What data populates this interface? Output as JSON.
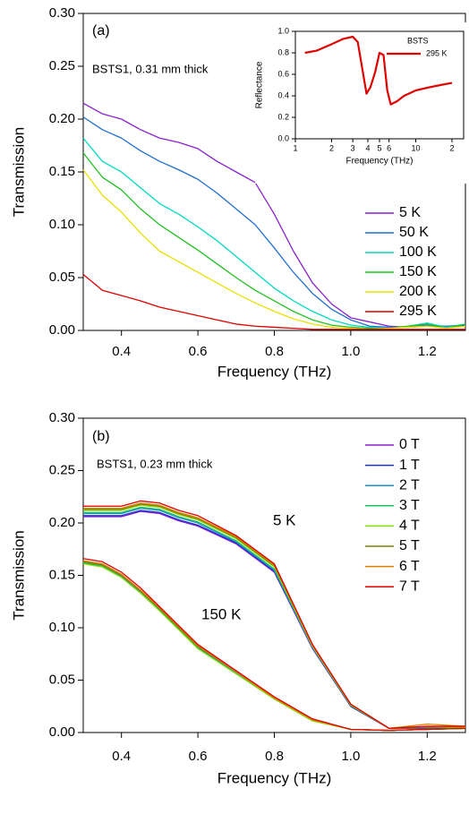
{
  "chart_data": [
    {
      "type": "line",
      "panel": "(a)",
      "annotations": [
        "(a)",
        "BSTS1, 0.31 mm thick"
      ],
      "x_label": "Frequency (THz)",
      "y_label": "Transmission",
      "xlim": [
        0.3,
        1.3
      ],
      "ylim": [
        0,
        0.3
      ],
      "xticks": [
        0.4,
        0.6,
        0.8,
        {
          "value": 1.0,
          "label": "1.0"
        },
        1.2
      ],
      "yticks": [
        {
          "value": 0,
          "label": "0.00"
        },
        0.05,
        {
          "value": 0.1,
          "label": "0.10"
        },
        0.15,
        {
          "value": 0.2,
          "label": "0.20"
        },
        0.25,
        {
          "value": 0.3,
          "label": "0.30"
        }
      ],
      "x": [
        0.3,
        0.35,
        0.4,
        0.45,
        0.5,
        0.55,
        0.6,
        0.65,
        0.7,
        0.75,
        0.8,
        0.85,
        0.9,
        0.95,
        1.0,
        1.05,
        1.1,
        1.15,
        1.2,
        1.25,
        1.3
      ],
      "series": [
        {
          "name": "5 K",
          "color": "#8a1fd0",
          "values": [
            0.215,
            0.205,
            0.2,
            0.19,
            0.182,
            0.178,
            0.172,
            0.16,
            0.15,
            0.14,
            0.11,
            0.075,
            0.045,
            0.025,
            0.012,
            0.008,
            0.004,
            0.003,
            0.004,
            0.003,
            0.005
          ]
        },
        {
          "name": "50 K",
          "color": "#1f6fd0",
          "values": [
            0.202,
            0.19,
            0.182,
            0.17,
            0.16,
            0.152,
            0.143,
            0.13,
            0.115,
            0.1,
            0.078,
            0.055,
            0.035,
            0.02,
            0.01,
            0.004,
            0.003,
            0.003,
            0.005,
            0.004,
            0.005
          ]
        },
        {
          "name": "100 K",
          "color": "#00d8c0",
          "values": [
            0.182,
            0.16,
            0.15,
            0.135,
            0.12,
            0.11,
            0.098,
            0.085,
            0.07,
            0.055,
            0.04,
            0.028,
            0.018,
            0.01,
            0.005,
            0.003,
            0.002,
            0.004,
            0.007,
            0.003,
            0.006
          ]
        },
        {
          "name": "150 K",
          "color": "#20c020",
          "values": [
            0.168,
            0.145,
            0.133,
            0.115,
            0.1,
            0.088,
            0.076,
            0.063,
            0.05,
            0.038,
            0.028,
            0.018,
            0.01,
            0.005,
            0.003,
            0.002,
            0.002,
            0.004,
            0.006,
            0.002,
            0.006
          ]
        },
        {
          "name": "200 K",
          "color": "#e8e000",
          "values": [
            0.152,
            0.128,
            0.112,
            0.092,
            0.075,
            0.065,
            0.055,
            0.045,
            0.035,
            0.026,
            0.018,
            0.011,
            0.006,
            0.003,
            0.002,
            0.001,
            0.002,
            0.003,
            0.004,
            0.002,
            0.004
          ]
        },
        {
          "name": "295 K",
          "color": "#e00000",
          "values": [
            0.053,
            0.038,
            0.033,
            0.028,
            0.022,
            0.018,
            0.014,
            0.01,
            0.006,
            0.004,
            0.003,
            0.002,
            0.001,
            0.001,
            0.001,
            0.001,
            0.001,
            0.001,
            0.001,
            0.001,
            0.001
          ]
        }
      ]
    },
    {
      "type": "line",
      "log_x": true,
      "legend_title": "BSTS",
      "x_label": "Frequency (THz)",
      "y_label": "Reflectance",
      "xlim": [
        1,
        25
      ],
      "ylim": [
        0,
        1
      ],
      "xticks": [
        1,
        2,
        3,
        4,
        5,
        6,
        10,
        {
          "value": 20,
          "label": "2"
        }
      ],
      "yticks": [
        {
          "value": 0,
          "label": "0.0"
        },
        0.2,
        0.4,
        0.6,
        0.8,
        {
          "value": 1,
          "label": "1.0"
        }
      ],
      "x": [
        1.2,
        1.5,
        2,
        2.5,
        3,
        3.3,
        3.6,
        3.9,
        4.2,
        4.6,
        5,
        5.4,
        5.8,
        6.2,
        7,
        8,
        10,
        13,
        16,
        20
      ],
      "series": [
        {
          "name": "295 K",
          "color": "#e00000",
          "values": [
            0.8,
            0.82,
            0.88,
            0.93,
            0.95,
            0.9,
            0.65,
            0.42,
            0.48,
            0.62,
            0.8,
            0.78,
            0.45,
            0.32,
            0.35,
            0.4,
            0.45,
            0.48,
            0.5,
            0.52
          ]
        }
      ]
    },
    {
      "type": "line",
      "panel": "(b)",
      "annotations": [
        "(b)",
        "BSTS1, 0.23 mm thick",
        "5 K",
        "150 K"
      ],
      "x_label": "Frequency (THz)",
      "y_label": "Transmission",
      "xlim": [
        0.3,
        1.3
      ],
      "ylim": [
        0,
        0.3
      ],
      "xticks": [
        0.4,
        0.6,
        0.8,
        {
          "value": 1.0,
          "label": "1.0"
        },
        1.2
      ],
      "yticks": [
        {
          "value": 0,
          "label": "0.00"
        },
        0.05,
        {
          "value": 0.1,
          "label": "0.10"
        },
        0.15,
        {
          "value": 0.2,
          "label": "0.20"
        },
        0.25,
        {
          "value": 0.3,
          "label": "0.30"
        }
      ],
      "x": [
        0.3,
        0.35,
        0.4,
        0.45,
        0.5,
        0.55,
        0.6,
        0.7,
        0.8,
        0.9,
        1.0,
        1.1,
        1.2,
        1.3
      ],
      "series": [
        {
          "name": "0 T",
          "color": "#8a1fd0",
          "values": [
            [
              0.206,
              0.206,
              0.206,
              0.211,
              0.209,
              0.202,
              0.197,
              0.18,
              0.153,
              0.08,
              0.025,
              0.004,
              0.004,
              0.005
            ],
            [
              0.162,
              0.159,
              0.149,
              0.134,
              0.117,
              0.099,
              0.081,
              0.057,
              0.032,
              0.012,
              0.003,
              0.002,
              0.003,
              0.004
            ]
          ]
        },
        {
          "name": "1 T",
          "color": "#2030d0",
          "values": [
            [
              0.207,
              0.207,
              0.207,
              0.212,
              0.21,
              0.203,
              0.198,
              0.181,
              0.154,
              0.081,
              0.025,
              0.004,
              0.005,
              0.005
            ],
            [
              0.162,
              0.159,
              0.149,
              0.134,
              0.117,
              0.099,
              0.081,
              0.058,
              0.033,
              0.012,
              0.003,
              0.002,
              0.003,
              0.004
            ]
          ]
        },
        {
          "name": "2 T",
          "color": "#1890d0",
          "values": [
            [
              0.209,
              0.209,
              0.209,
              0.214,
              0.212,
              0.205,
              0.2,
              0.182,
              0.155,
              0.081,
              0.026,
              0.004,
              0.005,
              0.005
            ],
            [
              0.163,
              0.159,
              0.149,
              0.134,
              0.117,
              0.099,
              0.081,
              0.057,
              0.033,
              0.012,
              0.003,
              0.002,
              0.003,
              0.004
            ]
          ]
        },
        {
          "name": "3 T",
          "color": "#20c060",
          "values": [
            [
              0.21,
              0.21,
              0.21,
              0.215,
              0.213,
              0.206,
              0.201,
              0.183,
              0.156,
              0.082,
              0.026,
              0.004,
              0.005,
              0.005
            ],
            [
              0.162,
              0.159,
              0.15,
              0.135,
              0.118,
              0.1,
              0.082,
              0.058,
              0.033,
              0.012,
              0.003,
              0.002,
              0.003,
              0.004
            ]
          ]
        },
        {
          "name": "4 T",
          "color": "#80e000",
          "values": [
            [
              0.212,
              0.212,
              0.212,
              0.217,
              0.215,
              0.208,
              0.203,
              0.185,
              0.158,
              0.082,
              0.026,
              0.004,
              0.005,
              0.005
            ],
            [
              0.161,
              0.158,
              0.148,
              0.133,
              0.116,
              0.098,
              0.08,
              0.056,
              0.032,
              0.011,
              0.003,
              0.002,
              0.003,
              0.004
            ]
          ]
        },
        {
          "name": "5 T",
          "color": "#808000",
          "values": [
            [
              0.213,
              0.213,
              0.213,
              0.218,
              0.216,
              0.209,
              0.204,
              0.186,
              0.159,
              0.083,
              0.027,
              0.004,
              0.005,
              0.006
            ],
            [
              0.163,
              0.16,
              0.15,
              0.135,
              0.118,
              0.1,
              0.082,
              0.058,
              0.033,
              0.012,
              0.003,
              0.002,
              0.003,
              0.004
            ]
          ]
        },
        {
          "name": "6 T",
          "color": "#e08000",
          "values": [
            [
              0.214,
              0.214,
              0.214,
              0.219,
              0.217,
              0.21,
              0.205,
              0.187,
              0.16,
              0.083,
              0.027,
              0.004,
              0.008,
              0.006
            ],
            [
              0.164,
              0.161,
              0.151,
              0.136,
              0.119,
              0.101,
              0.083,
              0.058,
              0.033,
              0.012,
              0.003,
              0.002,
              0.003,
              0.004
            ]
          ]
        },
        {
          "name": "7 T",
          "color": "#e00000",
          "values": [
            [
              0.216,
              0.216,
              0.216,
              0.221,
              0.219,
              0.212,
              0.207,
              0.188,
              0.161,
              0.084,
              0.027,
              0.004,
              0.006,
              0.006
            ],
            [
              0.166,
              0.163,
              0.153,
              0.138,
              0.12,
              0.102,
              0.084,
              0.059,
              0.034,
              0.013,
              0.003,
              0.002,
              0.003,
              0.004
            ]
          ]
        }
      ]
    }
  ]
}
